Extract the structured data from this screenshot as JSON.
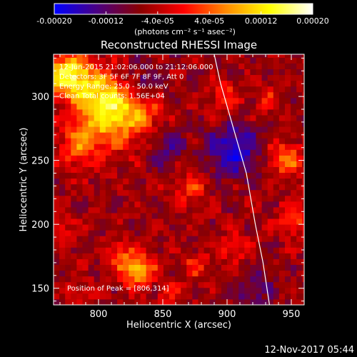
{
  "chart_data": {
    "type": "heatmap",
    "title": "Reconstructed RHESSI Image",
    "xlabel": "Heliocentric X (arcsec)",
    "ylabel": "Heliocentric Y (arcsec)",
    "xlim": [
      765,
      960
    ],
    "ylim": [
      137,
      333
    ],
    "x_ticks": [
      800,
      850,
      900,
      950
    ],
    "y_ticks": [
      150,
      200,
      250,
      300
    ],
    "x_tick_labels": [
      "800",
      "850",
      "900",
      "950"
    ],
    "y_tick_labels": [
      "150",
      "200",
      "250",
      "300"
    ],
    "colorbar": {
      "range": [
        -0.0002,
        0.0002
      ],
      "tick_values": [
        -0.0002,
        -0.00012,
        -4e-05,
        4e-05,
        0.00012,
        0.0002
      ],
      "tick_labels": [
        "-0.00020",
        "-0.00012",
        "-4.0e-05",
        "4.0e-05",
        "0.00012",
        "0.00020"
      ],
      "units_label": "(photons cm⁻² s⁻¹ asec⁻²)",
      "colors": [
        "#0000ff",
        "#4b0082",
        "#8b0000",
        "#ff0000",
        "#ff8c00",
        "#ffff00",
        "#ffffff"
      ]
    },
    "annotations": [
      "12-Jun-2015 21:02:06.000 to 21:12:06.000",
      "Detectors: 3F 5F 6F 7F 8F 9F, Att 0",
      "Energy Range: 25.0 - 50.0 keV",
      "Clean    Total counts: 1.56E+04"
    ],
    "peak_label": "Position of Peak = [806,314]",
    "peak_position": [
      806,
      314
    ],
    "hot_regions": [
      {
        "x": 776,
        "y": 318,
        "intensity": 0.00019,
        "sigma": 12
      },
      {
        "x": 800,
        "y": 300,
        "intensity": 0.00015,
        "sigma": 15
      },
      {
        "x": 812,
        "y": 282,
        "intensity": 0.00012,
        "sigma": 16
      },
      {
        "x": 835,
        "y": 290,
        "intensity": 8e-05,
        "sigma": 12
      },
      {
        "x": 784,
        "y": 262,
        "intensity": 0.0001,
        "sigma": 12
      },
      {
        "x": 830,
        "y": 165,
        "intensity": 0.00016,
        "sigma": 9
      },
      {
        "x": 815,
        "y": 178,
        "intensity": 8e-05,
        "sigma": 7
      },
      {
        "x": 945,
        "y": 252,
        "intensity": 0.00012,
        "sigma": 9
      },
      {
        "x": 952,
        "y": 205,
        "intensity": 8e-05,
        "sigma": 9
      },
      {
        "x": 898,
        "y": 300,
        "intensity": 8e-05,
        "sigma": 8
      },
      {
        "x": 872,
        "y": 228,
        "intensity": 7e-05,
        "sigma": 9
      },
      {
        "x": 875,
        "y": 168,
        "intensity": 6e-05,
        "sigma": 8
      },
      {
        "x": 905,
        "y": 180,
        "intensity": 6e-05,
        "sigma": 8
      },
      {
        "x": 855,
        "y": 145,
        "intensity": 5e-05,
        "sigma": 7
      },
      {
        "x": 770,
        "y": 195,
        "intensity": 7e-05,
        "sigma": 7
      },
      {
        "x": 785,
        "y": 150,
        "intensity": 4e-05,
        "sigma": 7
      },
      {
        "x": 930,
        "y": 300,
        "intensity": 5e-05,
        "sigma": 8
      }
    ],
    "cold_regions": [
      {
        "x": 905,
        "y": 258,
        "intensity": -0.00012,
        "sigma": 14
      },
      {
        "x": 835,
        "y": 310,
        "intensity": -8e-05,
        "sigma": 10
      },
      {
        "x": 855,
        "y": 260,
        "intensity": -6e-05,
        "sigma": 10
      },
      {
        "x": 920,
        "y": 150,
        "intensity": -6e-05,
        "sigma": 10
      }
    ],
    "limb_curve": {
      "x": [
        890,
        895,
        905,
        915,
        922,
        928,
        933
      ],
      "y": [
        333,
        310,
        275,
        240,
        200,
        170,
        137
      ]
    },
    "grid": false,
    "timestamp": "12-Nov-2017 05:44"
  }
}
